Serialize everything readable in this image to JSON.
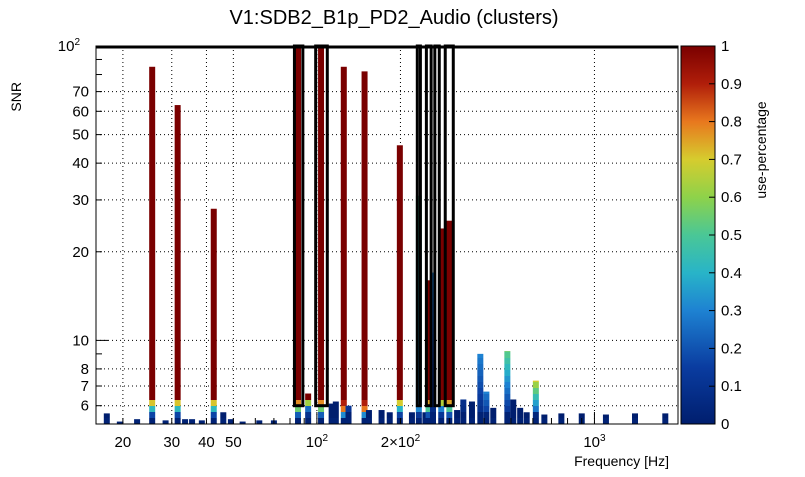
{
  "chart_data": {
    "type": "heatmap",
    "title": "V1:SDB2_B1p_PD2_Audio (clusters)",
    "xlabel": "Frequency [Hz]",
    "ylabel": "SNR",
    "xscale": "log",
    "yscale": "log",
    "xlim": [
      16,
      2000
    ],
    "ylim": [
      5.2,
      100
    ],
    "x_ticks": [
      {
        "value": 20,
        "label": "20"
      },
      {
        "value": 30,
        "label": "30"
      },
      {
        "value": 40,
        "label": "40"
      },
      {
        "value": 50,
        "label": "50"
      },
      {
        "value": 100,
        "label": "10",
        "exp": "2"
      },
      {
        "value": 200,
        "label": "2×10",
        "exp": "2"
      },
      {
        "value": 1000,
        "label": "10",
        "exp": "3"
      }
    ],
    "y_ticks": [
      {
        "value": 6,
        "label": "6"
      },
      {
        "value": 7,
        "label": "7"
      },
      {
        "value": 8,
        "label": "8"
      },
      {
        "value": 10,
        "label": "10"
      },
      {
        "value": 20,
        "label": "20"
      },
      {
        "value": 30,
        "label": "30"
      },
      {
        "value": 40,
        "label": "40"
      },
      {
        "value": 50,
        "label": "50"
      },
      {
        "value": 60,
        "label": "60"
      },
      {
        "value": 70,
        "label": "70"
      },
      {
        "value": 100,
        "label": "10",
        "exp": "2"
      }
    ],
    "colorbar": {
      "label": "use-percentage",
      "range": [
        0,
        1
      ],
      "ticks": [
        "0",
        "0.1",
        "0.2",
        "0.3",
        "0.4",
        "0.5",
        "0.6",
        "0.7",
        "0.8",
        "0.9",
        "1"
      ]
    },
    "columns": [
      {
        "f": 17.5,
        "top": 5.65,
        "use": 0.0
      },
      {
        "f": 19.5,
        "top": 5.3,
        "use": 0.0
      },
      {
        "f": 22.5,
        "top": 5.4,
        "use": 0.0
      },
      {
        "f": 25.5,
        "top": 85,
        "use": 1.0,
        "low": 0.42
      },
      {
        "f": 28.5,
        "top": 5.35,
        "use": 0.0
      },
      {
        "f": 31.5,
        "top": 63,
        "use": 1.0,
        "low": 0.42
      },
      {
        "f": 33.5,
        "top": 5.4,
        "use": 0.0
      },
      {
        "f": 35.5,
        "top": 5.4,
        "use": 0.0
      },
      {
        "f": 38.5,
        "top": 5.35,
        "use": 0.0
      },
      {
        "f": 42.5,
        "top": 28,
        "use": 1.0,
        "low": 0.42
      },
      {
        "f": 46.0,
        "top": 5.7,
        "use": 0.0
      },
      {
        "f": 49.0,
        "top": 5.4,
        "use": 0.0
      },
      {
        "f": 54.0,
        "top": 5.3,
        "use": 0.0
      },
      {
        "f": 62.0,
        "top": 5.35,
        "use": 0.0
      },
      {
        "f": 70.0,
        "top": 5.35,
        "use": 0.0
      },
      {
        "f": 85.5,
        "top": 100,
        "use": 1.0,
        "low": 0.55
      },
      {
        "f": 93.0,
        "top": 6.6,
        "use": 1.0
      },
      {
        "f": 103.5,
        "top": 100,
        "use": 1.0,
        "low": 0.55
      },
      {
        "f": 113.0,
        "top": 6.1,
        "use": 0.0
      },
      {
        "f": 117.0,
        "top": 6.2,
        "use": 0.0
      },
      {
        "f": 125.0,
        "top": 85,
        "use": 1.0,
        "low": 0.8
      },
      {
        "f": 130.0,
        "top": 6.0,
        "use": 0.15
      },
      {
        "f": 148.5,
        "top": 82,
        "use": 1.0,
        "low": 0.8
      },
      {
        "f": 154.0,
        "top": 5.8,
        "use": 0.0
      },
      {
        "f": 171.0,
        "top": 5.8,
        "use": 0.0
      },
      {
        "f": 183.0,
        "top": 5.7,
        "use": 0.0
      },
      {
        "f": 199.0,
        "top": 46,
        "use": 1.0,
        "low": 0.4
      },
      {
        "f": 220.0,
        "top": 5.7,
        "use": 0.0
      },
      {
        "f": 233.0,
        "top": 31,
        "use": 0.5,
        "low": 0.3
      },
      {
        "f": 246.0,
        "top": 5.7,
        "use": 0.0
      },
      {
        "f": 252.5,
        "top": 16,
        "use": 1.0,
        "low": 0.5
      },
      {
        "f": 262.0,
        "top": 17,
        "use": 0.3,
        "low": 0.05
      },
      {
        "f": 280.5,
        "top": 24,
        "use": 1.0,
        "low": 0.3
      },
      {
        "f": 300.0,
        "top": 25.5,
        "use": 1.0,
        "low": 0.5
      },
      {
        "f": 320.0,
        "top": 5.8,
        "use": 0.0
      },
      {
        "f": 337.0,
        "top": 6.3,
        "use": 0.1
      },
      {
        "f": 362.0,
        "top": 6.2,
        "use": 0.0
      },
      {
        "f": 388.0,
        "top": 9.0,
        "use": 0.3,
        "low": 0.05
      },
      {
        "f": 408.0,
        "top": 6.7,
        "use": 0.3
      },
      {
        "f": 432.0,
        "top": 5.9,
        "use": 0.0
      },
      {
        "f": 485.5,
        "top": 9.2,
        "use": 0.55,
        "low": 0.05
      },
      {
        "f": 510.0,
        "top": 6.3,
        "use": 0.0
      },
      {
        "f": 540.0,
        "top": 5.9,
        "use": 0.0
      },
      {
        "f": 570.0,
        "top": 5.7,
        "use": 0.0
      },
      {
        "f": 615.0,
        "top": 7.3,
        "use": 0.7,
        "low": 0.1
      },
      {
        "f": 660.0,
        "top": 5.6,
        "use": 0.0
      },
      {
        "f": 760.0,
        "top": 5.65,
        "use": 0.0
      },
      {
        "f": 900.0,
        "top": 5.65,
        "use": 0.0
      },
      {
        "f": 1100.0,
        "top": 5.6,
        "use": 0.0
      },
      {
        "f": 1400.0,
        "top": 5.65,
        "use": 0.0
      },
      {
        "f": 1800.0,
        "top": 5.65,
        "use": 0.0
      }
    ],
    "boxes": [
      {
        "f1": 83,
        "f2": 89
      },
      {
        "f1": 99,
        "f2": 109
      },
      {
        "f1": 230,
        "f2": 236
      },
      {
        "f1": 248,
        "f2": 258
      },
      {
        "f1": 266,
        "f2": 276
      },
      {
        "f1": 290,
        "f2": 310
      }
    ],
    "box_top": 100,
    "box_bottom": 6.0,
    "frame_top_line": true
  }
}
